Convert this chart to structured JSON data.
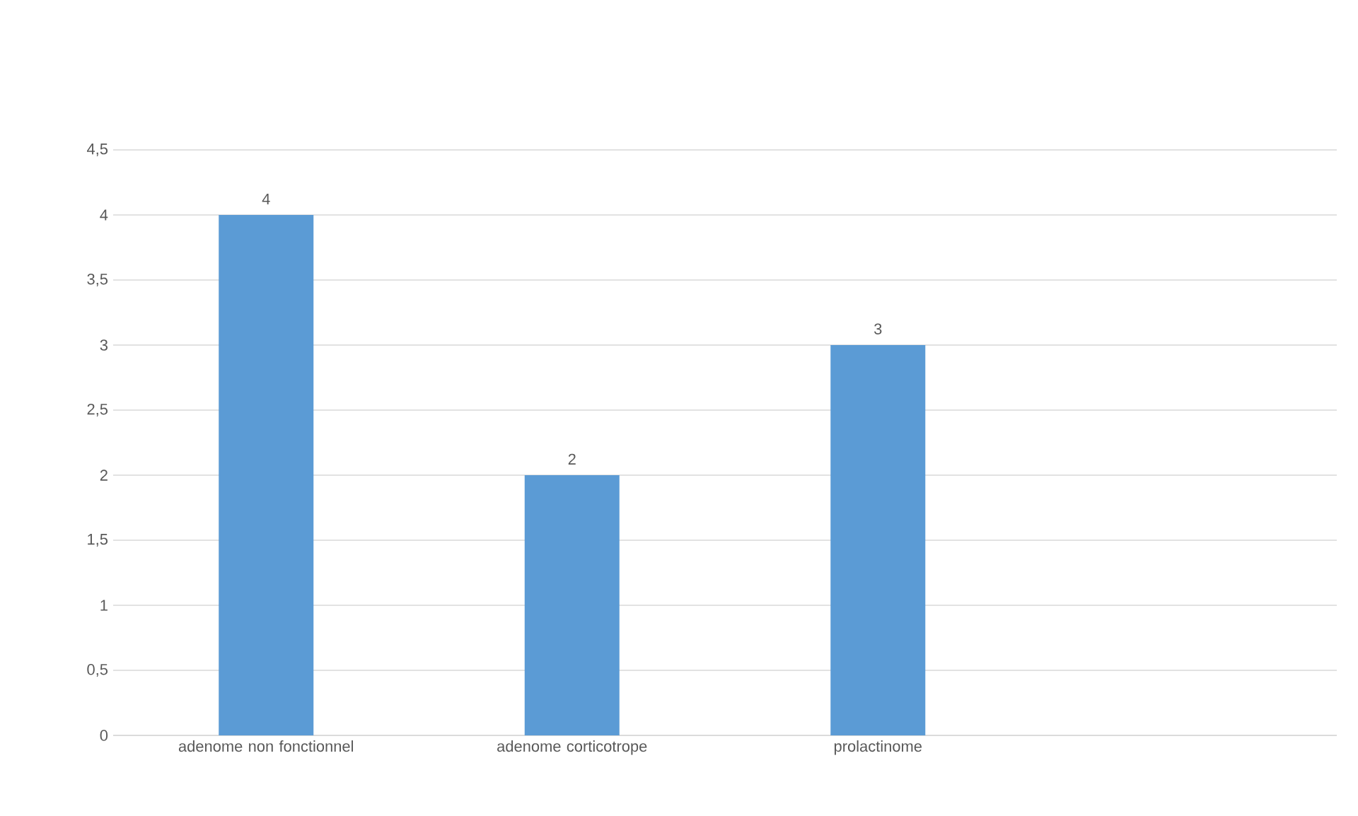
{
  "chart_data": {
    "type": "bar",
    "categories": [
      "adenome non fonctionnel",
      "adenome corticotrope",
      "prolactinome",
      null
    ],
    "values": [
      4,
      2,
      3,
      null
    ],
    "color": "#5b9bd5",
    "ylim": [
      0,
      4.5
    ],
    "yticks": [
      {
        "value": 0,
        "label": "0"
      },
      {
        "value": 0.5,
        "label": "0,5"
      },
      {
        "value": 1,
        "label": "1"
      },
      {
        "value": 1.5,
        "label": "1,5"
      },
      {
        "value": 2,
        "label": "2"
      },
      {
        "value": 2.5,
        "label": "2,5"
      },
      {
        "value": 3,
        "label": "3"
      },
      {
        "value": 3.5,
        "label": "3,5"
      },
      {
        "value": 4,
        "label": "4"
      },
      {
        "value": 4.5,
        "label": "4,5"
      }
    ],
    "grid": "y",
    "data_labels": true,
    "legend": false
  }
}
